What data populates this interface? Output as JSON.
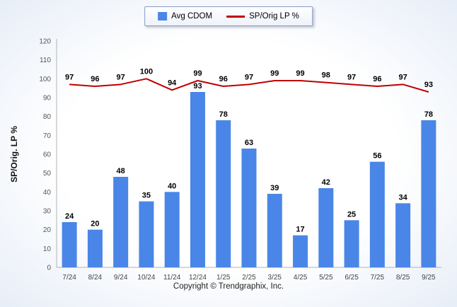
{
  "footer": {
    "copyright": "Copyright © Trendgraphix, Inc."
  },
  "chart_data": {
    "type": "bar",
    "title": "",
    "xlabel": "",
    "ylabel": "SP/Orig. LP %",
    "ylim": [
      0,
      120
    ],
    "ytick_step": 10,
    "grid": false,
    "legend_position": "top",
    "categories": [
      "7/24",
      "8/24",
      "9/24",
      "10/24",
      "11/24",
      "12/24",
      "1/25",
      "2/25",
      "3/25",
      "4/25",
      "5/25",
      "6/25",
      "7/25",
      "8/25",
      "9/25"
    ],
    "series": [
      {
        "name": "Avg CDOM",
        "type": "bar",
        "color": "#4a86e8",
        "values": [
          24,
          20,
          48,
          35,
          40,
          93,
          78,
          63,
          39,
          17,
          42,
          25,
          56,
          34,
          78
        ]
      },
      {
        "name": "SP/Orig LP %",
        "type": "line",
        "color": "#c00000",
        "values": [
          97,
          96,
          97,
          100,
          94,
          99,
          96,
          97,
          99,
          99,
          98,
          97,
          96,
          97,
          93
        ]
      }
    ],
    "axis_color": "#b3b3b3",
    "tick_label_color": "#555",
    "value_label_color": "#000"
  }
}
